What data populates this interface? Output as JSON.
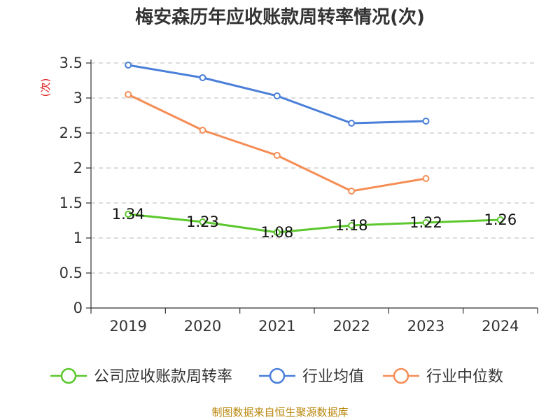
{
  "chart_data": {
    "type": "line",
    "title": "梅安森历年应收账款周转率情况(次)",
    "ylabel": "(次)",
    "xlabel": "",
    "categories": [
      "2019",
      "2020",
      "2021",
      "2022",
      "2023",
      "2024"
    ],
    "ylim": [
      0,
      3.5
    ],
    "yticks": [
      0,
      0.5,
      1,
      1.5,
      2,
      2.5,
      3,
      3.5
    ],
    "ytick_labels": [
      "0",
      "0.5",
      "1",
      "1.5",
      "2",
      "2.5",
      "3",
      "3.5"
    ],
    "grid": true,
    "legend_position": "bottom",
    "series": [
      {
        "name": "公司应收账款周转率",
        "color": "#5cc72e",
        "values": [
          1.34,
          1.23,
          1.08,
          1.18,
          1.22,
          1.26
        ],
        "labels": [
          "1.34",
          "1.23",
          "1.08",
          "1.18",
          "1.22",
          "1.26"
        ]
      },
      {
        "name": "行业均值",
        "color": "#4a7fd9",
        "values": [
          3.47,
          3.29,
          3.03,
          2.64,
          2.67,
          null
        ]
      },
      {
        "name": "行业中位数",
        "color": "#f58d55",
        "values": [
          3.05,
          2.54,
          2.18,
          1.67,
          1.85,
          null
        ]
      }
    ],
    "source": "制图数据来自恒生聚源数据库"
  }
}
